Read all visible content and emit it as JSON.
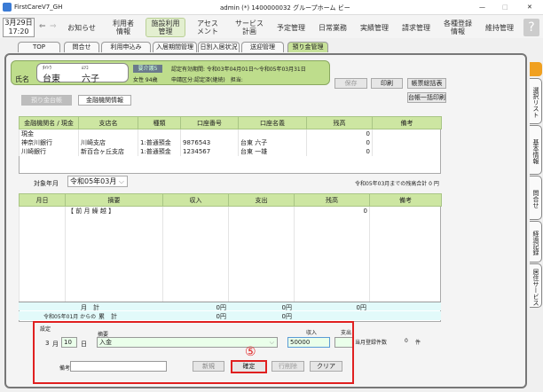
{
  "window": {
    "app_name": "FirstCareV7_GH",
    "title": "admin (*) 1400000032 グループホーム ビー",
    "minimize": "—",
    "maximize": "□",
    "close": "✕"
  },
  "menubar": {
    "date": "3月29日",
    "time": "17:20",
    "items": [
      "お知らせ",
      "利用者\n情報",
      "施設利用\n管理",
      "アセス\nメント",
      "サービス\n計画",
      "予定管理",
      "日常業務",
      "実績管理",
      "請求管理",
      "各種登録\n情報",
      "維持管理"
    ],
    "help": "?"
  },
  "tabs": [
    "TOP",
    "問合せ",
    "利用申込み",
    "入居期間管理",
    "日別入居状況",
    "送迎管理",
    "預り金管理"
  ],
  "header": {
    "name_label": "氏名",
    "kana_last": "ﾀｲﾄｳ",
    "kana_first": "ﾑﾂｺ",
    "last_name": "台東",
    "first_name": "六子",
    "care_badge": "要介護5",
    "gender_age": "女性 94歳",
    "cert_period": "認定有効期間: 令和03年04月01日～令和05年03月31日",
    "application": "申請区分:認定済(継続)　担当:"
  },
  "buttons": {
    "save": "保存",
    "print": "印刷",
    "summary": "帳票総括表",
    "bulk_print": "台帳一括印刷"
  },
  "subtabs": {
    "ledger": "預り金台帳",
    "bank": "金融機関情報"
  },
  "bank_table": {
    "headers": [
      "金融機関名 / 現金",
      "支店名",
      "種類",
      "口座番号",
      "口座名義",
      "残高",
      "備考"
    ],
    "rows": [
      [
        "現金",
        "",
        "",
        "",
        "",
        "0",
        ""
      ],
      [
        "神奈川銀行",
        "川崎支店",
        "1:普通預金",
        "9876543",
        "台東 六子",
        "0",
        ""
      ],
      [
        "川崎銀行",
        "新百合ヶ丘支店",
        "1:普通預金",
        "1234567",
        "台東 一雄",
        "0",
        ""
      ]
    ]
  },
  "period": {
    "label": "対象年月",
    "value": "令和05年03月",
    "total": "令和05年03月までの残高合計 0 円"
  },
  "ledger": {
    "headers": [
      "月日",
      "摘要",
      "収入",
      "支出",
      "残高",
      "備考"
    ],
    "rows": [
      [
        "",
        "【 前 月 繰 越 】",
        "",
        "",
        "0",
        ""
      ]
    ],
    "month_total": {
      "label": "月　計",
      "income": "0円",
      "expense": "0円",
      "balance": "0円"
    },
    "cumulative": {
      "since": "令和05年01月 からの",
      "label": "累　計",
      "income": "0円",
      "expense": "0円"
    }
  },
  "settings": {
    "title": "設定",
    "month": "3",
    "month_unit": "月",
    "day": "10",
    "day_unit": "日",
    "summary_label": "摘要",
    "summary_value": "入金",
    "income_label": "収入",
    "income_value": "50000",
    "expense_label": "支出",
    "expense_value": "",
    "note_label": "備考",
    "note_value": "",
    "count_label": "当月登録件数",
    "count_value": "0",
    "count_unit": "件",
    "step_marker": "⑤",
    "buttons": {
      "new": "新規",
      "confirm": "確定",
      "delete_row": "行削除",
      "clear": "クリア"
    }
  },
  "side_tabs": [
    "選択リスト",
    "基本情報",
    "問合せ",
    "経過記録",
    "居住サービス"
  ],
  "colors": {
    "accent_green": "#bedd8c",
    "highlight_red": "#e02020"
  }
}
